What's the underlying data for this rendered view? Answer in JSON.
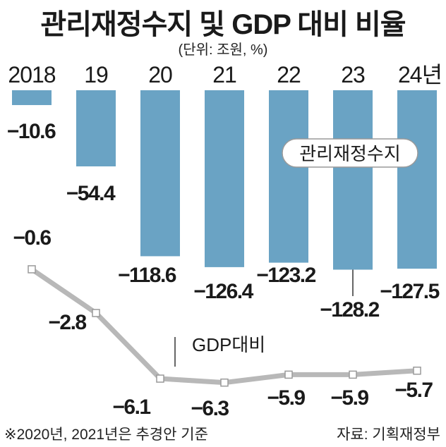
{
  "header": {
    "title": "관리재정수지 및 GDP 대비 비율",
    "unit": "(단위: 조원, %)"
  },
  "footer": {
    "note": "※2020년, 2021년은 추경안 기준",
    "source": "자료: 기획재정부"
  },
  "colors": {
    "bar": "#6aa3c4",
    "line": "#b8b8b8",
    "marker_fill": "#ffffff",
    "marker_stroke": "#9a9a9a",
    "pill_border": "#9a9a9a",
    "text": "#1a1a1a"
  },
  "chart_data": {
    "type": "bar",
    "categories": [
      "2018",
      "19",
      "20",
      "21",
      "22",
      "23",
      "24년"
    ],
    "series": [
      {
        "name": "관리재정수지",
        "type": "bar",
        "values": [
          -10.6,
          -54.4,
          -118.6,
          -126.4,
          -123.2,
          -128.2,
          -127.5
        ],
        "labels": [
          "−10.6",
          "−54.4",
          "−118.6",
          "−126.4",
          "−123.2",
          "−128.2",
          "−127.5"
        ]
      },
      {
        "name": "GDP대비",
        "type": "line",
        "values": [
          -0.6,
          -2.8,
          -6.1,
          -6.3,
          -5.9,
          -5.9,
          -5.7
        ],
        "labels": [
          "−0.6",
          "−2.8",
          "−6.1",
          "−6.3",
          "−5.9",
          "−5.9",
          "−5.7"
        ]
      }
    ],
    "title": "관리재정수지 및 GDP 대비 비율",
    "xlabel": "",
    "ylabel": ""
  }
}
